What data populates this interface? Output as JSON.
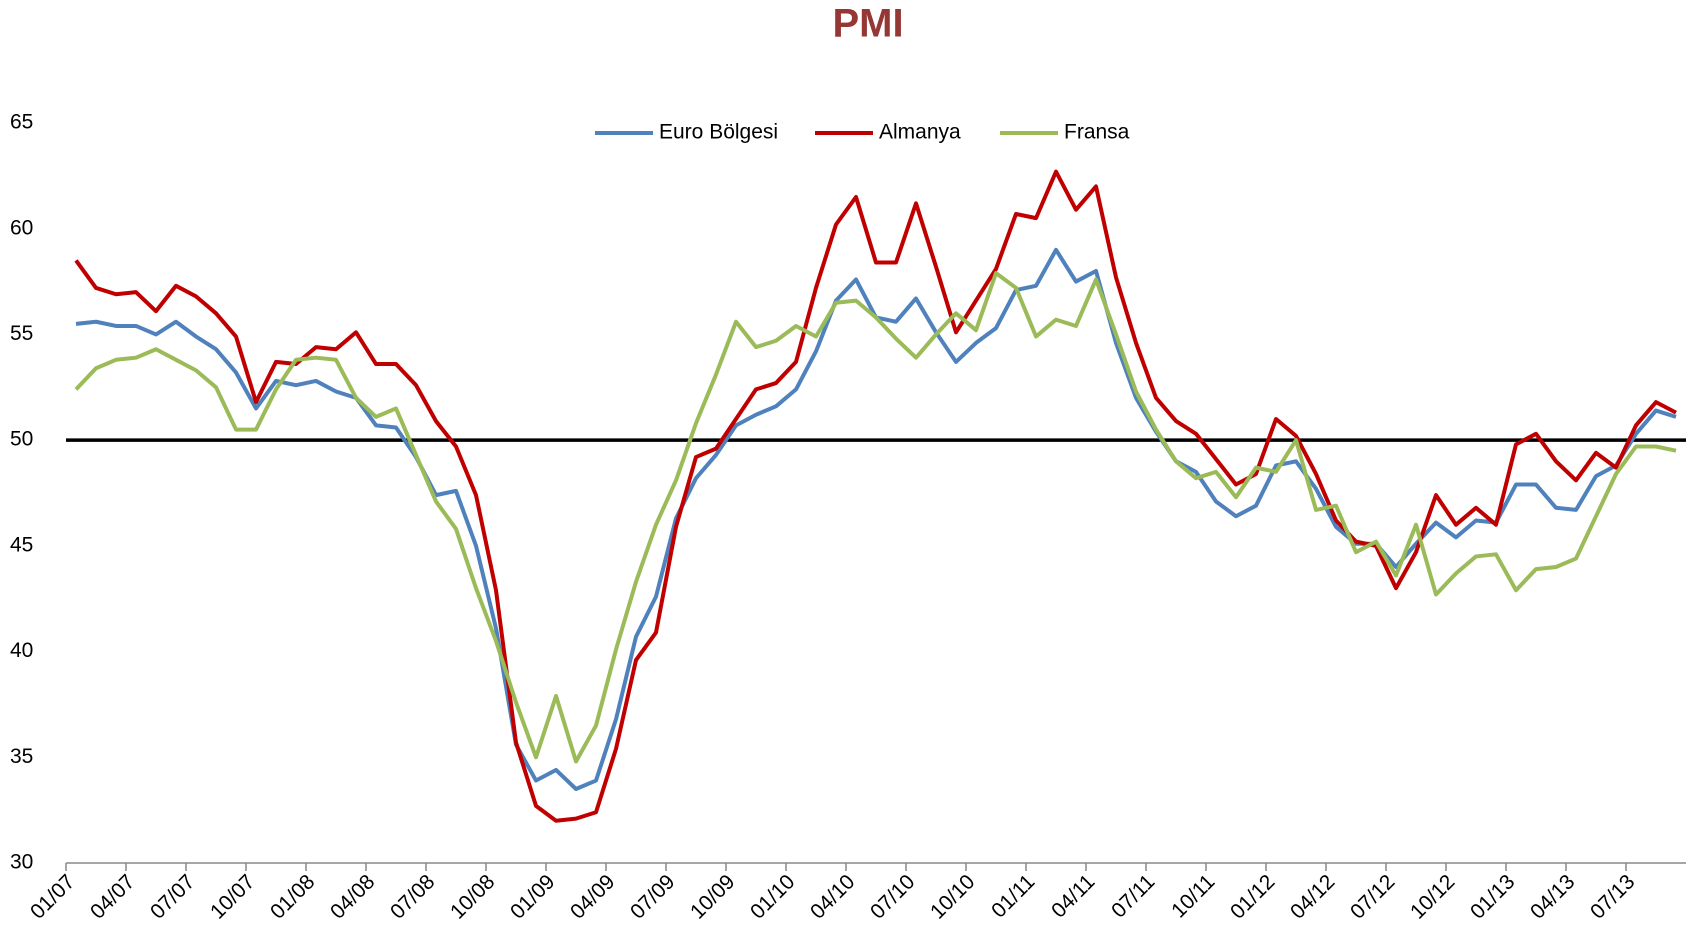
{
  "chart_data": {
    "type": "line",
    "title": "PMI",
    "categories": [
      "01/07",
      null,
      null,
      "04/07",
      null,
      null,
      "07/07",
      null,
      null,
      "10/07",
      null,
      null,
      "01/08",
      null,
      null,
      "04/08",
      null,
      null,
      "07/08",
      null,
      null,
      "10/08",
      null,
      null,
      "01/09",
      null,
      null,
      "04/09",
      null,
      null,
      "07/09",
      null,
      null,
      "10/09",
      null,
      null,
      "01/10",
      null,
      null,
      "04/10",
      null,
      null,
      "07/10",
      null,
      null,
      "10/10",
      null,
      null,
      "01/11",
      null,
      null,
      "04/11",
      null,
      null,
      "07/11",
      null,
      null,
      "10/11",
      null,
      null,
      "01/12",
      null,
      null,
      "04/12",
      null,
      null,
      "07/12",
      null,
      null,
      "10/12",
      null,
      null,
      "01/13",
      null,
      null,
      "04/13",
      null,
      null,
      "07/13",
      null,
      null
    ],
    "series": [
      {
        "name": "Euro Bölgesi",
        "color": "#4f81bd",
        "values": [
          55.5,
          55.6,
          55.4,
          55.4,
          55.0,
          55.6,
          54.9,
          54.3,
          53.2,
          51.5,
          52.8,
          52.6,
          52.8,
          52.3,
          52.0,
          50.7,
          50.6,
          49.2,
          47.4,
          47.6,
          45.0,
          41.1,
          35.6,
          33.9,
          34.4,
          33.5,
          33.9,
          36.8,
          40.7,
          42.6,
          46.3,
          48.2,
          49.3,
          50.7,
          51.2,
          51.6,
          52.4,
          54.2,
          56.6,
          57.6,
          55.8,
          55.6,
          56.7,
          55.1,
          53.7,
          54.6,
          55.3,
          57.1,
          57.3,
          59.0,
          57.5,
          58.0,
          54.6,
          52.0,
          50.4,
          49.0,
          48.5,
          47.1,
          46.4,
          46.9,
          48.8,
          49.0,
          47.7,
          45.9,
          45.1,
          45.1,
          44.0,
          45.1,
          46.1,
          45.4,
          46.2,
          46.1,
          47.9,
          47.9,
          46.8,
          46.7,
          48.3,
          48.8,
          50.3,
          51.4,
          51.1
        ]
      },
      {
        "name": "Almanya",
        "color": "#c00000",
        "values": [
          58.5,
          57.2,
          56.9,
          57.0,
          56.1,
          57.3,
          56.8,
          56.0,
          54.9,
          51.8,
          53.7,
          53.6,
          54.4,
          54.3,
          55.1,
          53.6,
          53.6,
          52.6,
          50.9,
          49.7,
          47.4,
          42.9,
          35.7,
          32.7,
          32.0,
          32.1,
          32.4,
          35.4,
          39.6,
          40.9,
          45.9,
          49.2,
          49.6,
          51.0,
          52.4,
          52.7,
          53.7,
          57.2,
          60.2,
          61.5,
          58.4,
          58.4,
          61.2,
          58.2,
          55.1,
          56.6,
          58.1,
          60.7,
          60.5,
          62.7,
          60.9,
          62.0,
          57.7,
          54.6,
          52.0,
          50.9,
          50.3,
          49.1,
          47.9,
          48.4,
          51.0,
          50.2,
          48.4,
          46.2,
          45.2,
          45.0,
          43.0,
          44.7,
          47.4,
          46.0,
          46.8,
          46.0,
          49.8,
          50.3,
          49.0,
          48.1,
          49.4,
          48.7,
          50.7,
          51.8,
          51.3
        ]
      },
      {
        "name": "Fransa",
        "color": "#9bbb59",
        "values": [
          52.4,
          53.4,
          53.8,
          53.9,
          54.3,
          53.8,
          53.3,
          52.5,
          50.5,
          50.5,
          52.4,
          53.8,
          53.9,
          53.8,
          52.0,
          51.1,
          51.5,
          49.3,
          47.1,
          45.8,
          43.0,
          40.5,
          37.6,
          35.0,
          37.9,
          34.8,
          36.5,
          40.1,
          43.3,
          46.0,
          48.1,
          50.8,
          53.1,
          55.6,
          54.4,
          54.7,
          55.4,
          54.9,
          56.5,
          56.6,
          55.8,
          54.8,
          53.9,
          55.0,
          56.0,
          55.2,
          57.9,
          57.2,
          54.9,
          55.7,
          55.4,
          57.6,
          55.0,
          52.3,
          50.5,
          49.0,
          48.2,
          48.5,
          47.3,
          48.7,
          48.5,
          50.0,
          46.7,
          46.9,
          44.7,
          45.2,
          43.6,
          46.0,
          42.7,
          43.7,
          44.5,
          44.6,
          42.9,
          43.9,
          44.0,
          44.4,
          46.4,
          48.4,
          49.7,
          49.7,
          49.5
        ]
      }
    ],
    "ylim": [
      30,
      65
    ],
    "yticks": [
      30,
      35,
      40,
      45,
      50,
      55,
      60,
      65
    ],
    "reference_line": 50,
    "grid": false,
    "legend": "top"
  }
}
